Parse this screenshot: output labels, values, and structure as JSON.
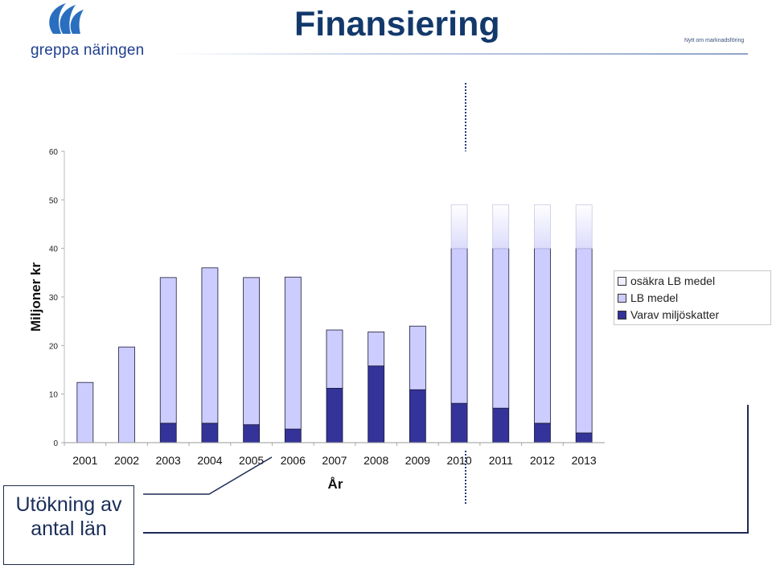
{
  "header": {
    "title": "Finansiering",
    "tagline": "Nytt om marknadsföring",
    "logo_text": "greppa näringen"
  },
  "colors": {
    "title": "#13396b",
    "dark_bar": "#333399",
    "light_bar": "#ccccff",
    "uncertain_bar": "#eeeeff"
  },
  "callout": {
    "line1": "Utökning av",
    "line2": "antal län"
  },
  "chart_data": {
    "type": "bar",
    "stacked": true,
    "categories": [
      "2001",
      "2002",
      "2003",
      "2004",
      "2005",
      "2006",
      "2007",
      "2008",
      "2009",
      "2010",
      "2011",
      "2012",
      "2013"
    ],
    "series": [
      {
        "name": "Varav miljöskatter",
        "color": "#333399",
        "values": [
          0,
          0,
          4,
          4,
          3.7,
          2.8,
          11.2,
          15.8,
          10.9,
          8.1,
          7.1,
          4,
          2
        ]
      },
      {
        "name": "LB medel",
        "color": "#ccccff",
        "values": [
          12.4,
          19.7,
          30,
          32,
          30.3,
          31.3,
          12,
          7,
          13.1,
          31.9,
          32.9,
          36,
          38
        ]
      },
      {
        "name": "osäkra LB medel",
        "color": "#eeeeff",
        "values": [
          0,
          0,
          0,
          0,
          0,
          0,
          0,
          0,
          0,
          9,
          9,
          9,
          9
        ]
      }
    ],
    "legend_order": [
      "osäkra LB medel",
      "LB medel",
      "Varav miljöskatter"
    ],
    "xlabel": "År",
    "ylabel": "Miljoner kr",
    "ylim": [
      0,
      60
    ],
    "yticks": [
      0,
      10,
      20,
      30,
      40,
      50,
      60
    ],
    "grid": false,
    "legend_position": "right"
  }
}
